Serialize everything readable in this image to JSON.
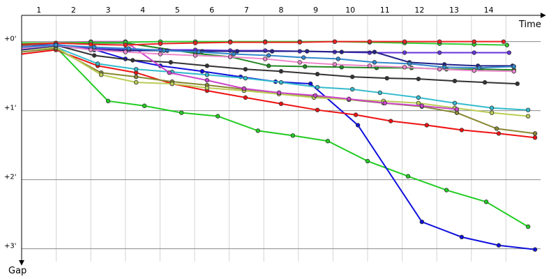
{
  "chart_data": {
    "type": "line",
    "x_label": "Time",
    "y_label": "Gap",
    "xlim": [
      0.5,
      15.5
    ],
    "xticks": [
      1,
      2,
      3,
      4,
      5,
      6,
      7,
      8,
      9,
      10,
      11,
      12,
      13,
      14
    ],
    "ylim": [
      -0.32,
      3.185
    ],
    "yticks": [
      {
        "value": 0,
        "label": "+0'"
      },
      {
        "value": 1,
        "label": "+1'"
      },
      {
        "value": 2,
        "label": "+2'"
      },
      {
        "value": 3,
        "label": "+3'"
      }
    ],
    "grid": true,
    "series": [
      {
        "color": "#22cc22",
        "x": [
          0.5,
          1.49,
          3.0,
          4.05,
          5.12,
          6.17,
          7.33,
          8.34,
          9.35,
          10.5,
          11.67,
          12.78,
          13.93,
          15.14
        ],
        "values": [
          0.12,
          0.08,
          0.86,
          0.93,
          1.03,
          1.08,
          1.29,
          1.36,
          1.44,
          1.73,
          1.95,
          2.15,
          2.32,
          2.68
        ]
      },
      {
        "color": "#1010dd",
        "x": [
          0.5,
          1.49,
          2.5,
          3.5,
          4.51,
          5.72,
          6.83,
          7.84,
          8.85,
          10.22,
          12.07,
          13.22,
          14.29,
          15.34
        ],
        "values": [
          0.05,
          0.05,
          0.1,
          0.25,
          0.35,
          0.43,
          0.51,
          0.58,
          0.61,
          1.21,
          2.61,
          2.83,
          2.95,
          3.01
        ]
      },
      {
        "color": "#ee1111",
        "x": [
          0.5,
          1.49,
          2.7,
          3.81,
          4.85,
          5.86,
          6.97,
          8.0,
          9.05,
          10.16,
          11.17,
          12.21,
          13.22,
          14.29,
          15.34
        ],
        "values": [
          0.18,
          0.12,
          0.35,
          0.45,
          0.61,
          0.71,
          0.81,
          0.9,
          0.99,
          1.06,
          1.15,
          1.21,
          1.28,
          1.33,
          1.39
        ]
      },
      {
        "color": "#33bbcc",
        "x": [
          0.5,
          1.49,
          2.7,
          3.81,
          4.85,
          5.86,
          6.97,
          8.0,
          9.05,
          10.06,
          10.86,
          11.97,
          13.02,
          14.09,
          15.14
        ],
        "values": [
          0.1,
          0.08,
          0.32,
          0.4,
          0.44,
          0.48,
          0.53,
          0.59,
          0.66,
          0.69,
          0.74,
          0.81,
          0.89,
          0.96,
          0.99
        ]
      },
      {
        "color": "#888833",
        "x": [
          0.5,
          1.49,
          2.8,
          3.81,
          4.85,
          5.86,
          6.93,
          7.94,
          8.95,
          9.96,
          10.96,
          12.07,
          13.08,
          14.23,
          15.34
        ],
        "values": [
          0.15,
          0.1,
          0.45,
          0.51,
          0.58,
          0.63,
          0.69,
          0.74,
          0.79,
          0.84,
          0.89,
          0.94,
          1.03,
          1.26,
          1.33
        ]
      },
      {
        "color": "#bbcc55",
        "x": [
          0.5,
          1.49,
          2.8,
          3.81,
          4.85,
          5.86,
          6.93,
          7.94,
          8.95,
          9.96,
          10.96,
          11.97,
          13.02,
          14.09,
          15.14
        ],
        "values": [
          0.12,
          0.08,
          0.48,
          0.59,
          0.61,
          0.67,
          0.71,
          0.76,
          0.81,
          0.84,
          0.86,
          0.89,
          0.96,
          1.03,
          1.08
        ]
      },
      {
        "color": "#333333",
        "x": [
          0.5,
          1.49,
          2.6,
          3.71,
          4.81,
          5.86,
          6.97,
          8.0,
          9.05,
          10.06,
          11.06,
          11.97,
          13.02,
          13.89,
          14.83
        ],
        "values": [
          0.08,
          0.05,
          0.2,
          0.27,
          0.3,
          0.35,
          0.4,
          0.43,
          0.47,
          0.51,
          0.53,
          0.54,
          0.57,
          0.59,
          0.61
        ]
      },
      {
        "color": "#cc44cc",
        "x": [
          0.5,
          1.49,
          2.5,
          3.5,
          4.77,
          5.86,
          6.93,
          7.94,
          8.99,
          9.96,
          11.0,
          12.07,
          13.08
        ],
        "values": [
          0.06,
          0.02,
          0.0,
          0.0,
          0.45,
          0.56,
          0.68,
          0.74,
          0.78,
          0.83,
          0.89,
          0.93,
          0.98
        ]
      },
      {
        "color": "#228822",
        "x": [
          0.5,
          1.49,
          3.5,
          5.52,
          6.53,
          7.64,
          8.69,
          9.75,
          10.76,
          11.77,
          12.78,
          13.79,
          14.73
        ],
        "values": [
          0.05,
          0.02,
          0.02,
          0.17,
          0.22,
          0.35,
          0.36,
          0.37,
          0.38,
          0.38,
          0.4,
          0.4,
          0.41
        ]
      },
      {
        "color": "#33cc33",
        "x": [
          0.5,
          1.49,
          2.5,
          3.5,
          4.51,
          5.52,
          6.53,
          7.54,
          8.54,
          9.55,
          10.56,
          11.57,
          12.58,
          13.58,
          14.53
        ],
        "values": [
          0.02,
          0.02,
          0.01,
          0.01,
          0.0,
          0.0,
          0.0,
          0.0,
          0.0,
          0.0,
          0.01,
          0.02,
          0.03,
          0.04,
          0.05
        ]
      },
      {
        "color": "#ee2222",
        "x": [
          0.5,
          1.49,
          2.5,
          3.5,
          4.51,
          5.52,
          6.53,
          7.54,
          8.54,
          9.55,
          10.56,
          11.57,
          12.58,
          13.58,
          14.43
        ],
        "values": [
          0.04,
          0.02,
          0.04,
          0.05,
          0.03,
          0.02,
          0.01,
          0.01,
          0.01,
          0.0,
          0.0,
          0.0,
          0.0,
          0.0,
          0.0
        ]
      },
      {
        "color": "#6633dd",
        "x": [
          0.5,
          1.49,
          2.5,
          3.5,
          4.51,
          5.52,
          6.53,
          7.54,
          8.54,
          9.55,
          10.56,
          11.57,
          12.58,
          13.58,
          14.59
        ],
        "values": [
          0.1,
          0.04,
          0.1,
          0.11,
          0.12,
          0.12,
          0.13,
          0.13,
          0.14,
          0.15,
          0.16,
          0.16,
          0.16,
          0.16,
          0.16
        ]
      },
      {
        "color": "#222288",
        "x": [
          0.5,
          1.49,
          2.6,
          3.6,
          4.71,
          5.72,
          6.73,
          7.74,
          8.75,
          9.75,
          10.7,
          11.71,
          12.72,
          13.69,
          14.69
        ],
        "values": [
          0.12,
          0.06,
          0.12,
          0.13,
          0.13,
          0.14,
          0.14,
          0.14,
          0.14,
          0.15,
          0.15,
          0.3,
          0.33,
          0.35,
          0.35
        ]
      },
      {
        "color": "#ee88cc",
        "x": [
          0.5,
          1.49,
          2.5,
          3.5,
          4.51,
          5.52,
          6.53,
          7.54,
          8.54,
          9.55,
          10.56,
          11.57,
          12.58,
          13.58,
          14.73
        ],
        "values": [
          0.1,
          0.05,
          0.12,
          0.15,
          0.18,
          0.2,
          0.22,
          0.25,
          0.3,
          0.33,
          0.35,
          0.37,
          0.4,
          0.42,
          0.43
        ]
      },
      {
        "color": "#3388cc",
        "x": [
          0.5,
          1.49,
          2.6,
          3.6,
          4.61,
          5.62,
          6.63,
          7.64,
          8.65,
          9.65,
          10.7,
          11.71,
          12.72,
          13.73,
          14.73
        ],
        "values": [
          0.08,
          0.05,
          0.08,
          0.1,
          0.13,
          0.15,
          0.18,
          0.2,
          0.23,
          0.25,
          0.3,
          0.32,
          0.37,
          0.38,
          0.36
        ]
      }
    ]
  }
}
